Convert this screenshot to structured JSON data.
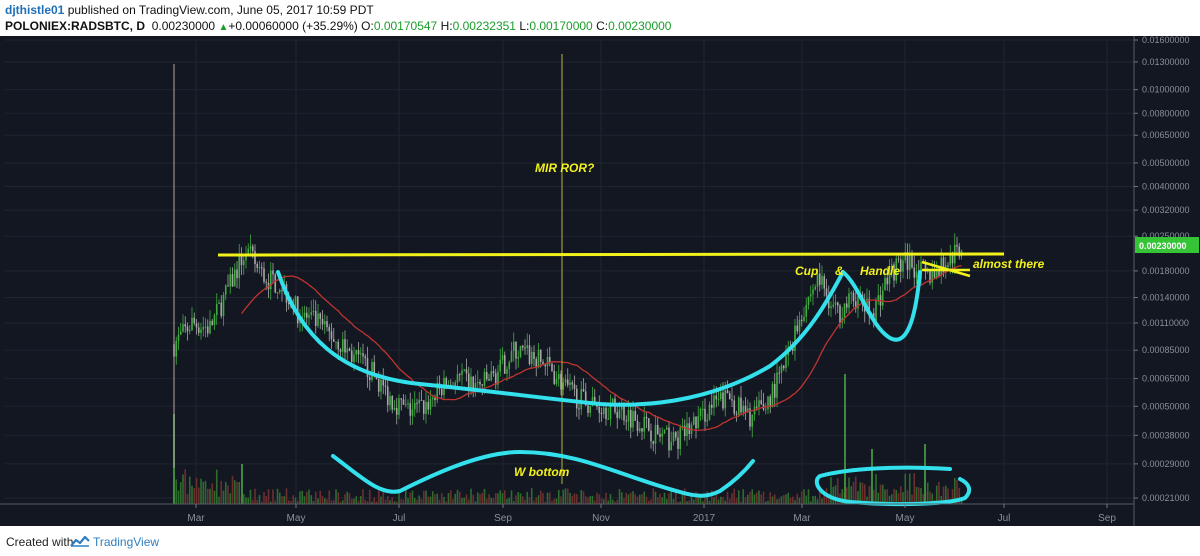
{
  "header": {
    "author": "djthistle01",
    "published_text": "published on TradingView.com, June 05, 2017 10:59 PDT",
    "symbol": "POLONIEX:RADSBTC, D",
    "last_price": "0.00230000",
    "change": "+0.00060000 (+35.29%)",
    "open_label": "O:",
    "open": "0.00170547",
    "high_label": "H:",
    "high": "0.00232351",
    "low_label": "L:",
    "low": "0.00170000",
    "close_label": "C:",
    "close": "0.00230000"
  },
  "footer": {
    "created_with": "Created with",
    "brand": "TradingView"
  },
  "colors": {
    "background": "#131722",
    "annotation_yellow": "#f2f21a",
    "annotation_cyan": "#33e1ec",
    "candle_up": "#3fae3f",
    "candle_down": "#a8a8a8",
    "moving_average": "#c0342f",
    "price_tag": "#35c436"
  },
  "chart_data": {
    "type": "candlestick",
    "scale": "log",
    "x_ticks": [
      "Mar",
      "May",
      "Jul",
      "Sep",
      "Nov",
      "2017",
      "Mar",
      "May",
      "Jul",
      "Sep"
    ],
    "y_ticks": [
      "0.01600000",
      "0.01300000",
      "0.01000000",
      "0.00800000",
      "0.00650000",
      "0.00500000",
      "0.00400000",
      "0.00320000",
      "0.00250000",
      "0.00180000",
      "0.00140000",
      "0.00110000",
      "0.00085000",
      "0.00065000",
      "0.00050000",
      "0.00038000",
      "0.00029000",
      "0.00021000"
    ],
    "last_price_tag": "0.00230000",
    "annotations": {
      "mir_ror": "MIR ROR?",
      "cup": "Cup",
      "amp": "&",
      "handle": "Handle",
      "almost_there": "almost there",
      "w_bottom": "W bottom"
    },
    "series": [
      {
        "points": [
          [
            "Feb-28",
            0.0009
          ],
          [
            "Mar-05",
            0.0011
          ],
          [
            "Mar-10",
            0.00105
          ],
          [
            "Mar-15",
            0.0015
          ],
          [
            "Mar-20",
            0.0022
          ],
          [
            "Mar-25",
            0.0017
          ],
          [
            "Apr-01",
            0.0016
          ],
          [
            "Apr-08",
            0.0012
          ],
          [
            "Apr-15",
            0.0011
          ],
          [
            "Apr-25",
            0.00095
          ],
          [
            "May-05",
            0.0008
          ],
          [
            "May-20",
            0.0007
          ],
          [
            "Jun-01",
            0.00055
          ],
          [
            "Jun-15",
            0.00048
          ],
          [
            "Jul-01",
            0.0005
          ],
          [
            "Jul-15",
            0.0006
          ],
          [
            "Aug-01",
            0.00065
          ],
          [
            "Aug-15",
            0.0006
          ],
          [
            "Sep-01",
            0.00068
          ],
          [
            "Sep-10",
            0.00085
          ],
          [
            "Sep-20",
            0.0008
          ],
          [
            "Oct-01",
            0.00072
          ],
          [
            "Oct-15",
            0.00058
          ],
          [
            "Nov-01",
            0.00052
          ],
          [
            "Nov-15",
            0.0005
          ],
          [
            "Dec-01",
            0.00048
          ],
          [
            "Dec-15",
            0.00044
          ],
          [
            "Dec-25",
            0.00038
          ],
          [
            "Jan-05",
            0.00036
          ],
          [
            "Jan-15",
            0.00042
          ],
          [
            "Feb-01",
            0.0005
          ],
          [
            "Feb-15",
            0.00055
          ],
          [
            "Mar-01",
            0.00045
          ],
          [
            "Mar-10",
            0.0005
          ],
          [
            "Mar-20",
            0.0007
          ],
          [
            "Mar-25",
            0.0012
          ],
          [
            "Apr-01",
            0.0017
          ],
          [
            "Apr-10",
            0.0012
          ],
          [
            "Apr-20",
            0.0014
          ],
          [
            "May-01",
            0.0012
          ],
          [
            "May-10",
            0.0018
          ],
          [
            "May-15",
            0.002
          ],
          [
            "May-25",
            0.0017
          ],
          [
            "Jun-01",
            0.0019
          ],
          [
            "Jun-05",
            0.0023
          ]
        ]
      }
    ]
  }
}
